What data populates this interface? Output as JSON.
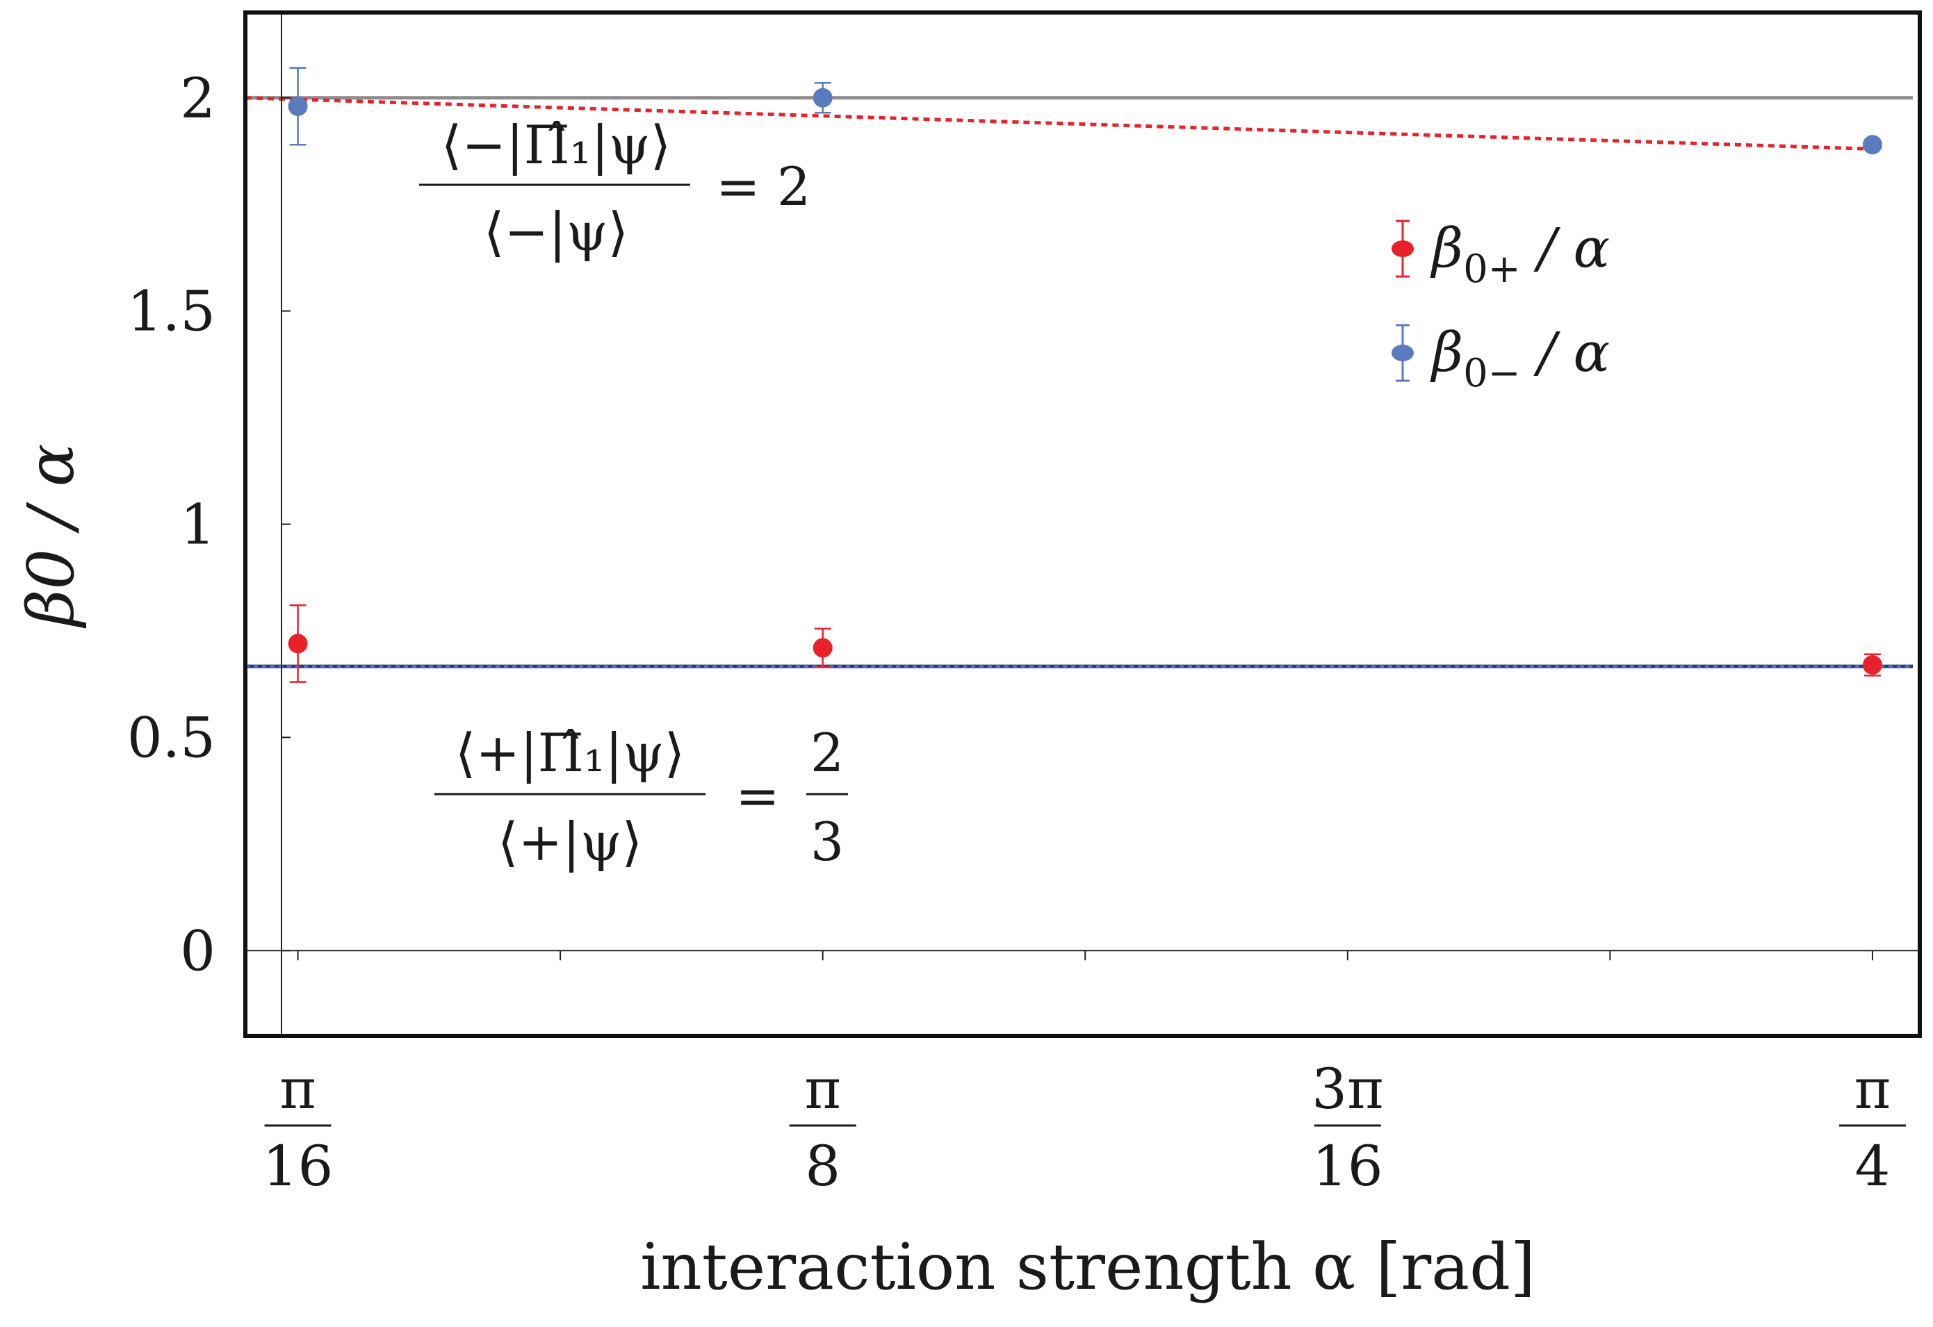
{
  "chart_data": {
    "type": "scatter",
    "xlabel": "interaction strength  α [rad]",
    "ylabel": "β0 / α",
    "x_range": [
      0.1767,
      0.8031
    ],
    "y_range": [
      -0.2,
      2.2
    ],
    "x_ticks": [
      {
        "value": 0.19635,
        "num": "π",
        "den": "16"
      },
      {
        "value": 0.3927,
        "num": "π",
        "den": "8"
      },
      {
        "value": 0.58905,
        "num": "3π",
        "den": "16"
      },
      {
        "value": 0.7854,
        "num": "π",
        "den": "4"
      }
    ],
    "y_ticks": [
      {
        "value": 0,
        "label": "0"
      },
      {
        "value": 0.5,
        "label": "0.5"
      },
      {
        "value": 1,
        "label": "1"
      },
      {
        "value": 1.5,
        "label": "1.5"
      },
      {
        "value": 2,
        "label": "2"
      }
    ],
    "series": [
      {
        "name": "β0+ / α",
        "color": "#e8212b",
        "points": [
          {
            "x": 0.19635,
            "y": 0.72,
            "err": 0.09
          },
          {
            "x": 0.3927,
            "y": 0.71,
            "err": 0.045
          },
          {
            "x": 0.7854,
            "y": 0.67,
            "err": 0.025
          }
        ]
      },
      {
        "name": "β0− / α",
        "color": "#5b7bbf",
        "points": [
          {
            "x": 0.19635,
            "y": 1.98,
            "err": 0.09
          },
          {
            "x": 0.3927,
            "y": 2.0,
            "err": 0.035
          },
          {
            "x": 0.7854,
            "y": 1.89,
            "err": 0.0
          }
        ]
      }
    ],
    "reference_lines": [
      {
        "y": 2.0,
        "color": "#8c8c8c",
        "style": "solid"
      },
      {
        "y": 0.6667,
        "color": "#26387f",
        "style": "solid"
      },
      {
        "y": 0.6667,
        "color": "#5b7bbf",
        "style": "dotted"
      }
    ],
    "theory_curve": {
      "color": "#e8212b",
      "style": "dotted",
      "x": [
        0.1767,
        0.7854
      ],
      "y": [
        2.0,
        1.88
      ]
    },
    "annotations": [
      {
        "numerator": "⟨−|Π̂₁|ψ⟩",
        "denominator": "⟨−|ψ⟩",
        "rhs": "= 2"
      },
      {
        "numerator": "⟨+|Π̂₁|ψ⟩",
        "denominator": "⟨+|ψ⟩",
        "rhs_num": "2",
        "rhs_den": "3",
        "eq": "="
      }
    ],
    "legend": [
      {
        "label_base": "β",
        "label_sub": "0+",
        "label_tail": " / α",
        "color": "#e8212b"
      },
      {
        "label_base": "β",
        "label_sub": "0−",
        "label_tail": " / α",
        "color": "#5b7bbf"
      }
    ],
    "legend_position": "right",
    "grid": false
  }
}
